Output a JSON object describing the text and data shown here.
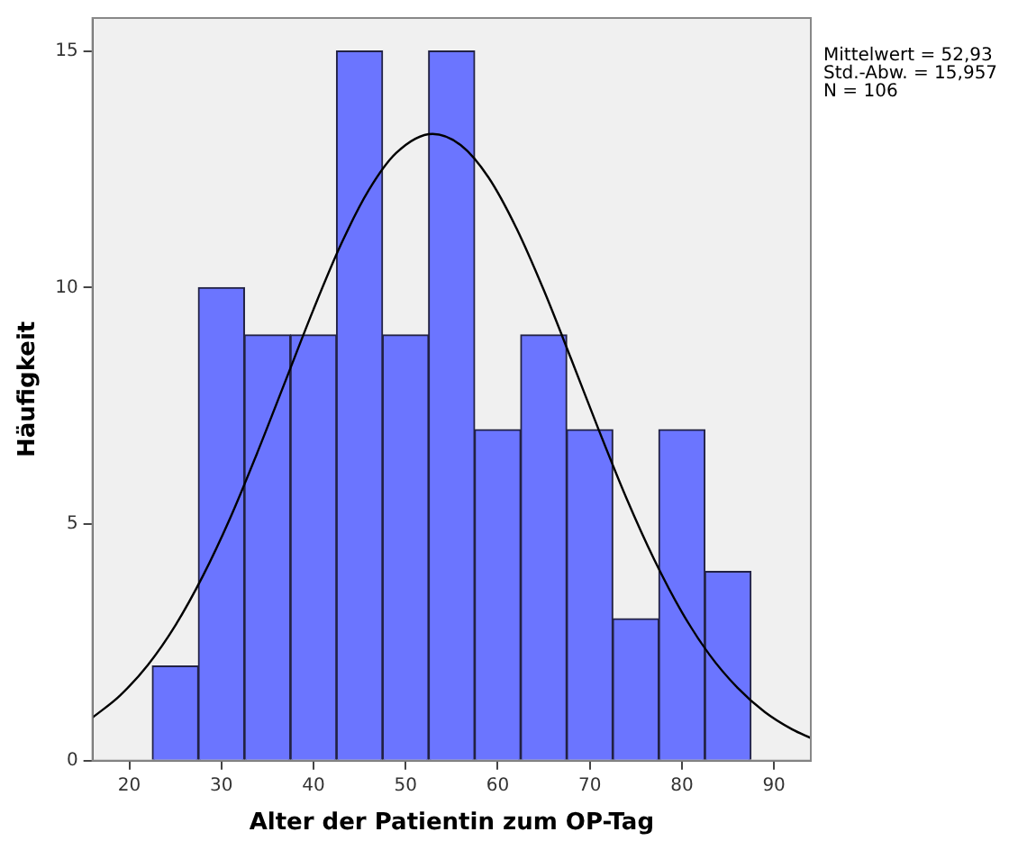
{
  "chart_data": {
    "type": "histogram",
    "xlabel": "Alter der Patientin zum OP-Tag",
    "ylabel": "Häufigkeit",
    "xlim": [
      16,
      94
    ],
    "xticks": [
      20,
      30,
      40,
      50,
      60,
      70,
      80,
      90
    ],
    "ylim": [
      0,
      15.7
    ],
    "yticks": [
      0,
      5,
      10,
      15
    ],
    "grid": false,
    "legend": false,
    "annotations": [
      "Mittelwert = 52,93",
      "Std.-Abw. = 15,957",
      "N = 106"
    ],
    "series": [
      {
        "color": "#6b75ff",
        "bins": [
          22.5,
          27.5,
          32.5,
          37.5,
          42.5,
          47.5,
          52.5,
          57.5,
          62.5,
          67.5,
          72.5,
          77.5,
          82.5,
          87.5
        ],
        "values": [
          2,
          10,
          9,
          9,
          15,
          9,
          15,
          7,
          9,
          7,
          3,
          7,
          4
        ]
      },
      {
        "type": "line",
        "color": "#000000",
        "marker": "none",
        "x": [
          16,
          19,
          22,
          25,
          28,
          31,
          34,
          37,
          40,
          43,
          46,
          49,
          52.93,
          56,
          59,
          62,
          65,
          68,
          71,
          74,
          77,
          80,
          83,
          86,
          89,
          92,
          94
        ],
        "values": [
          0.91,
          1.38,
          2.02,
          2.86,
          3.91,
          5.15,
          6.56,
          8.05,
          9.54,
          10.92,
          12.06,
          12.85,
          13.25,
          13.01,
          12.33,
          11.27,
          9.95,
          8.48,
          6.98,
          5.54,
          4.25,
          3.14,
          2.24,
          1.55,
          1.03,
          0.66,
          0.48
        ]
      }
    ]
  }
}
